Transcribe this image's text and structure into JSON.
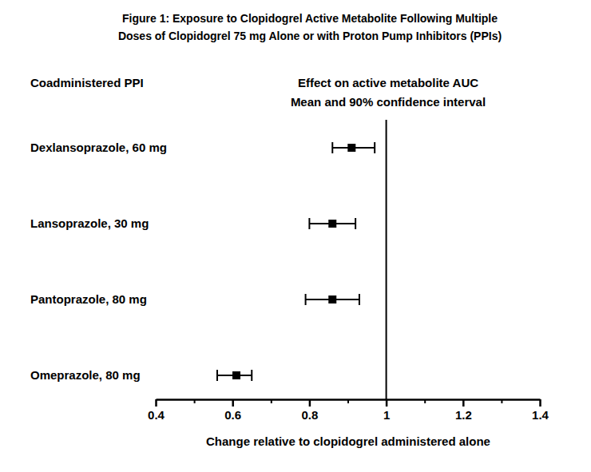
{
  "chart_data": {
    "type": "forest",
    "title": [
      "Figure 1: Exposure to Clopidogrel Active Metabolite Following Multiple",
      "Doses of Clopidogrel 75 mg Alone or with Proton Pump Inhibitors (PPIs)"
    ],
    "y_label": "Coadministered PPI",
    "subtitle": [
      "Effect on active metabolite AUC",
      "Mean and 90% confidence interval"
    ],
    "x_label": "Change relative to clopidogrel administered alone",
    "categories": [
      "Dexlansoprazole, 60 mg",
      "Lansoprazole, 30 mg",
      "Pantoprazole, 80 mg",
      "Omeprazole, 80 mg"
    ],
    "values": [
      0.91,
      0.86,
      0.86,
      0.61
    ],
    "ci_low": [
      0.86,
      0.8,
      0.79,
      0.56
    ],
    "ci_high": [
      0.97,
      0.92,
      0.93,
      0.65
    ],
    "color": "#000000",
    "marker": "square",
    "xlim": [
      0.4,
      1.4
    ],
    "xticks": [
      0.4,
      0.6,
      0.8,
      1,
      1.2,
      1.4
    ],
    "minor_xticks": [
      0.5,
      0.7,
      0.9,
      1.1,
      1.3
    ],
    "reference_x": 1,
    "grid": false
  }
}
